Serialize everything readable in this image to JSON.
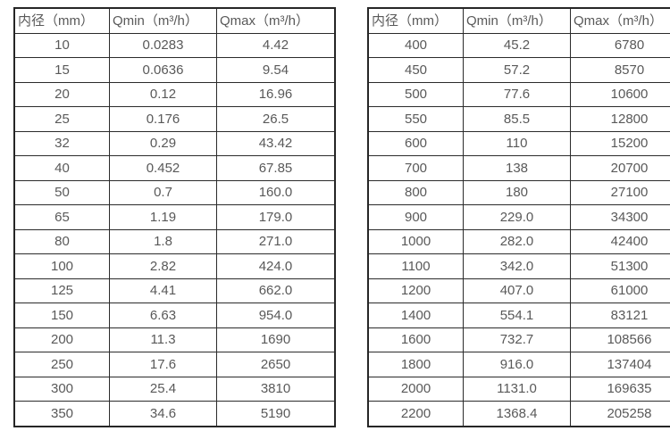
{
  "colors": {
    "background": "#ffffff",
    "border": "#262626",
    "text": "#595959"
  },
  "chart_data": [
    {
      "type": "table",
      "name": "flow-spec-small-diameters",
      "columns": [
        "内径（mm）",
        "Qmin（m³/h）",
        "Qmax（m³/h）"
      ],
      "rows": [
        [
          "10",
          "0.0283",
          "4.42"
        ],
        [
          "15",
          "0.0636",
          "9.54"
        ],
        [
          "20",
          "0.12",
          "16.96"
        ],
        [
          "25",
          "0.176",
          "26.5"
        ],
        [
          "32",
          "0.29",
          "43.42"
        ],
        [
          "40",
          "0.452",
          "67.85"
        ],
        [
          "50",
          "0.7",
          "160.0"
        ],
        [
          "65",
          "1.19",
          "179.0"
        ],
        [
          "80",
          "1.8",
          "271.0"
        ],
        [
          "100",
          "2.82",
          "424.0"
        ],
        [
          "125",
          "4.41",
          "662.0"
        ],
        [
          "150",
          "6.63",
          "954.0"
        ],
        [
          "200",
          "11.3",
          "1690"
        ],
        [
          "250",
          "17.6",
          "2650"
        ],
        [
          "300",
          "25.4",
          "3810"
        ],
        [
          "350",
          "34.6",
          "5190"
        ]
      ]
    },
    {
      "type": "table",
      "name": "flow-spec-large-diameters",
      "columns": [
        "内径（mm）",
        "Qmin（m³/h）",
        "Qmax（m³/h）"
      ],
      "rows": [
        [
          "400",
          "45.2",
          "6780"
        ],
        [
          "450",
          "57.2",
          "8570"
        ],
        [
          "500",
          "77.6",
          "10600"
        ],
        [
          "550",
          "85.5",
          "12800"
        ],
        [
          "600",
          "110",
          "15200"
        ],
        [
          "700",
          "138",
          "20700"
        ],
        [
          "800",
          "180",
          "27100"
        ],
        [
          "900",
          "229.0",
          "34300"
        ],
        [
          "1000",
          "282.0",
          "42400"
        ],
        [
          "1100",
          "342.0",
          "51300"
        ],
        [
          "1200",
          "407.0",
          "61000"
        ],
        [
          "1400",
          "554.1",
          "83121"
        ],
        [
          "1600",
          "732.7",
          "108566"
        ],
        [
          "1800",
          "916.0",
          "137404"
        ],
        [
          "2000",
          "1131.0",
          "169635"
        ],
        [
          "2200",
          "1368.4",
          "205258"
        ]
      ]
    }
  ]
}
